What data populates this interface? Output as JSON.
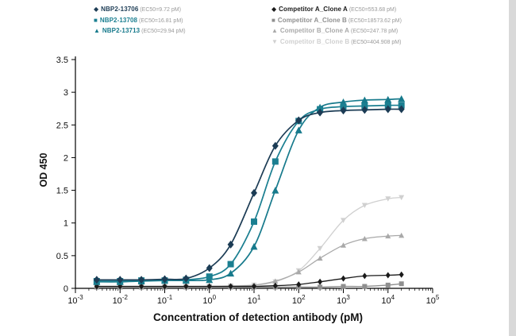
{
  "chart_data": {
    "type": "line",
    "title": "",
    "xlabel": "Concentration of detection antibody (pM)",
    "ylabel": "OD 450",
    "x_scale": "log10",
    "xlim_exponents": [
      -3,
      5
    ],
    "ylim": [
      0,
      3.5
    ],
    "x_tick_exponents": [
      -3,
      -2,
      -1,
      0,
      1,
      2,
      3,
      4,
      5
    ],
    "y_ticks": [
      0,
      0.5,
      1,
      1.5,
      2,
      2.5,
      3,
      3.5
    ],
    "grid": false,
    "legend_position": "top",
    "x": [
      0.003,
      0.01,
      0.03,
      0.1,
      0.3,
      1,
      3,
      10,
      30,
      100,
      300,
      1000,
      3000,
      10000,
      20000
    ],
    "series": [
      {
        "name": "NBP2-13706",
        "ec50_label": "(EC50=9.72 pM)",
        "marker": "diamond",
        "color": "#1c3c55",
        "values": [
          0.13,
          0.13,
          0.13,
          0.14,
          0.15,
          0.31,
          0.67,
          1.46,
          2.18,
          2.57,
          2.69,
          2.72,
          2.73,
          2.74,
          2.74
        ]
      },
      {
        "name": "NBP2-13708",
        "ec50_label": "(EC50=16.81 pM)",
        "marker": "square",
        "color": "#1b7f91",
        "values": [
          0.11,
          0.11,
          0.12,
          0.12,
          0.13,
          0.18,
          0.37,
          1.02,
          1.94,
          2.56,
          2.74,
          2.78,
          2.79,
          2.8,
          2.8
        ]
      },
      {
        "name": "NBP2-13713",
        "ec50_label": "(EC50=29.94 pM)",
        "marker": "triangle",
        "color": "#177a8c",
        "values": [
          0.1,
          0.1,
          0.11,
          0.12,
          0.12,
          0.13,
          0.23,
          0.64,
          1.5,
          2.42,
          2.77,
          2.85,
          2.88,
          2.89,
          2.9
        ]
      },
      {
        "name": "Competitor A_Clone A",
        "ec50_label": "(EC50=553.68 pM)",
        "marker": "diamond",
        "color": "#1a1a1a",
        "values": [
          0.03,
          0.03,
          0.03,
          0.03,
          0.03,
          0.03,
          0.03,
          0.03,
          0.04,
          0.06,
          0.1,
          0.15,
          0.19,
          0.2,
          0.21
        ]
      },
      {
        "name": "Competitor A_Clone B",
        "ec50_label": "(EC50=18573.62 pM)",
        "marker": "square",
        "color": "#8f8f8f",
        "values": [
          0.02,
          0.02,
          0.02,
          0.02,
          0.02,
          0.02,
          0.02,
          0.02,
          0.02,
          0.02,
          0.02,
          0.03,
          0.03,
          0.05,
          0.07
        ]
      },
      {
        "name": "Competitor B_Clone A",
        "ec50_label": "(EC50=247.78 pM)",
        "marker": "triangle",
        "color": "#a9a9a9",
        "values": [
          0.02,
          0.02,
          0.02,
          0.02,
          0.02,
          0.02,
          0.03,
          0.05,
          0.11,
          0.25,
          0.46,
          0.66,
          0.76,
          0.8,
          0.81
        ]
      },
      {
        "name": "Competitor B_Clone B",
        "ec50_label": "(EC50=404.908 pM)",
        "marker": "triangle-down",
        "color": "#d0d0d0",
        "values": [
          0.03,
          0.03,
          0.03,
          0.03,
          0.03,
          0.03,
          0.04,
          0.05,
          0.1,
          0.27,
          0.61,
          1.04,
          1.27,
          1.37,
          1.39
        ]
      }
    ]
  },
  "legend_columns": [
    3,
    4
  ]
}
